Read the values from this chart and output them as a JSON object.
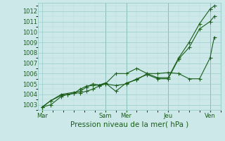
{
  "title": "Pression niveau de la mer( hPa )",
  "ylim": [
    1002.5,
    1012.8
  ],
  "yticks": [
    1003,
    1004,
    1005,
    1006,
    1007,
    1008,
    1009,
    1010,
    1011,
    1012
  ],
  "xtick_labels": [
    "Mar",
    "Sam",
    "Mer",
    "Jeu",
    "Ven"
  ],
  "xtick_positions": [
    0,
    3.0,
    4.0,
    6.0,
    8.0
  ],
  "bg_color": "#cce8e8",
  "grid_color_major": "#99cccc",
  "grid_color_minor": "#b8dddd",
  "line_color": "#1a5e1a",
  "markersize": 2.0,
  "series1_x": [
    0.0,
    0.4,
    0.9,
    1.2,
    1.5,
    1.8,
    2.1,
    2.4,
    2.7,
    3.0,
    3.5,
    4.0,
    4.5,
    5.0,
    5.5,
    6.0,
    6.5,
    7.0,
    7.5,
    8.0,
    8.2
  ],
  "series1_y": [
    1002.8,
    1003.4,
    1003.9,
    1004.0,
    1004.1,
    1004.15,
    1004.3,
    1004.5,
    1004.8,
    1005.0,
    1004.85,
    1005.0,
    1005.5,
    1005.9,
    1005.5,
    1005.5,
    1007.4,
    1008.5,
    1010.3,
    1011.0,
    1011.5
  ],
  "series2_x": [
    0.0,
    0.4,
    0.9,
    1.5,
    1.8,
    2.1,
    2.4,
    2.7,
    3.0,
    3.5,
    4.0,
    4.5,
    5.0,
    5.5,
    6.0,
    6.5,
    7.0,
    7.5,
    8.0,
    8.2
  ],
  "series2_y": [
    1002.8,
    1003.4,
    1004.0,
    1004.2,
    1004.3,
    1004.7,
    1005.0,
    1004.9,
    1005.0,
    1006.0,
    1006.0,
    1006.5,
    1006.0,
    1005.6,
    1005.6,
    1007.5,
    1009.0,
    1010.8,
    1012.2,
    1012.5
  ],
  "series3_x": [
    0.0,
    0.4,
    0.9,
    1.2,
    1.5,
    1.8,
    2.1,
    2.4,
    2.7,
    3.0,
    3.5,
    4.0,
    4.5,
    5.0,
    5.5,
    6.0,
    6.5,
    7.0,
    7.5,
    8.0,
    8.2
  ],
  "series3_y": [
    1002.8,
    1003.0,
    1003.8,
    1004.0,
    1004.1,
    1004.5,
    1004.8,
    1004.85,
    1004.9,
    1005.1,
    1004.3,
    1005.1,
    1005.4,
    1006.0,
    1006.0,
    1006.1,
    1006.0,
    1005.5,
    1005.5,
    1007.5,
    1009.5
  ],
  "xlim": [
    -0.2,
    8.5
  ],
  "vlines": [
    3.0,
    4.0,
    6.0,
    8.0
  ]
}
